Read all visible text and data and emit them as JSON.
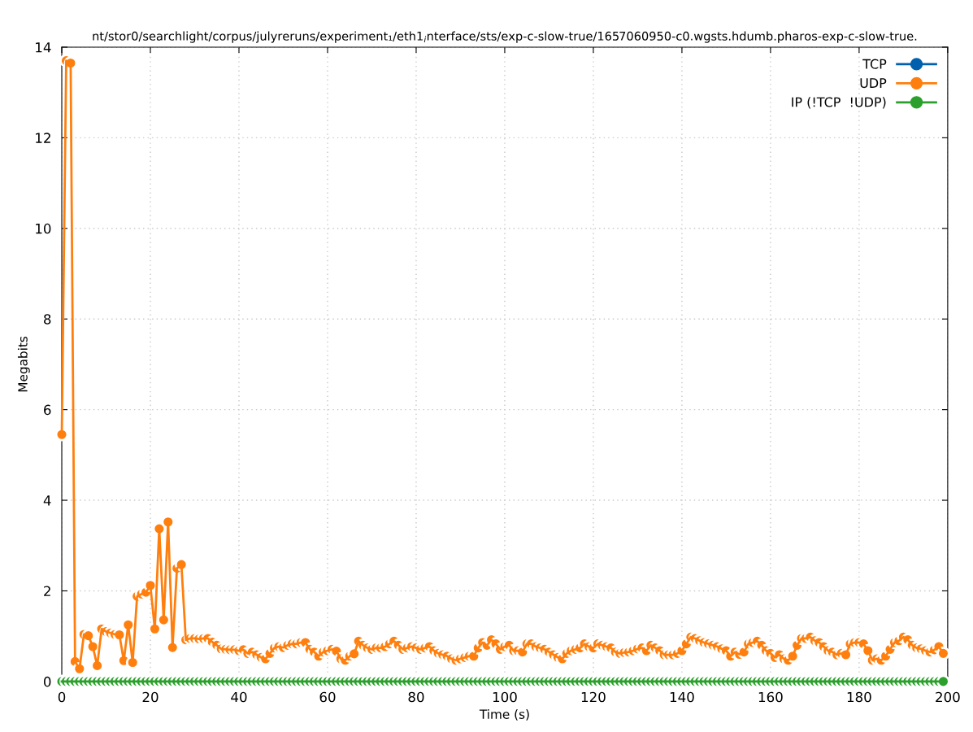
{
  "chart_data": {
    "type": "line",
    "title": "nt/stor0/searchlight/corpus/julyreruns/experiment₁/eth1$_{i}$nterface/sts/exp-c-slow-true/1657060950-c0.wgsts.hdumb.pharos-exp-c-slow-true.",
    "xlabel": "Time (s)",
    "ylabel": "Megabits",
    "x": [
      0,
      1,
      2,
      3,
      4,
      5,
      6,
      7,
      8,
      9,
      10,
      11,
      12,
      13,
      14,
      15,
      16,
      17,
      18,
      19,
      20,
      21,
      22,
      23,
      24,
      25,
      26,
      27,
      28,
      29,
      30,
      31,
      32,
      33,
      34,
      35,
      36,
      37,
      38,
      39,
      40,
      41,
      42,
      43,
      44,
      45,
      46,
      47,
      48,
      49,
      50,
      51,
      52,
      53,
      54,
      55,
      56,
      57,
      58,
      59,
      60,
      61,
      62,
      63,
      64,
      65,
      66,
      67,
      68,
      69,
      70,
      71,
      72,
      73,
      74,
      75,
      76,
      77,
      78,
      79,
      80,
      81,
      82,
      83,
      84,
      85,
      86,
      87,
      88,
      89,
      90,
      91,
      92,
      93,
      94,
      95,
      96,
      97,
      98,
      99,
      100,
      101,
      102,
      103,
      104,
      105,
      106,
      107,
      108,
      109,
      110,
      111,
      112,
      113,
      114,
      115,
      116,
      117,
      118,
      119,
      120,
      121,
      122,
      123,
      124,
      125,
      126,
      127,
      128,
      129,
      130,
      131,
      132,
      133,
      134,
      135,
      136,
      137,
      138,
      139,
      140,
      141,
      142,
      143,
      144,
      145,
      146,
      147,
      148,
      149,
      150,
      151,
      152,
      153,
      154,
      155,
      156,
      157,
      158,
      159,
      160,
      161,
      162,
      163,
      164,
      165,
      166,
      167,
      168,
      169,
      170,
      171,
      172,
      173,
      174,
      175,
      176,
      177,
      178,
      179,
      180,
      181,
      182,
      183,
      184,
      185,
      186,
      187,
      188,
      189,
      190,
      191,
      192,
      193,
      194,
      195,
      196,
      197,
      198,
      199
    ],
    "series": [
      {
        "name": "TCP",
        "color": "#0060ad",
        "values": [
          null,
          null,
          null,
          null,
          null,
          null,
          null,
          null,
          null,
          null,
          null,
          null,
          null,
          null,
          null,
          null,
          null,
          null,
          null,
          null,
          null,
          null,
          null,
          null,
          null,
          null,
          null,
          null,
          null,
          null,
          null,
          null,
          null,
          null,
          null,
          null,
          null,
          null,
          null,
          null,
          null,
          null,
          null,
          null,
          null,
          null,
          null,
          null,
          null,
          null,
          null,
          null,
          null,
          null,
          null,
          null,
          null,
          null,
          null,
          null,
          null,
          null,
          null,
          null,
          null,
          null,
          null,
          null,
          null,
          null,
          null,
          null,
          null,
          null,
          null,
          null,
          null,
          null,
          null,
          null,
          null,
          null,
          null,
          null,
          null,
          null,
          null,
          null,
          null,
          null,
          null,
          null,
          null,
          null,
          null,
          null,
          null,
          null,
          null,
          null,
          null,
          null,
          null,
          null,
          null,
          null,
          null,
          null,
          null,
          null,
          null,
          null,
          null,
          null,
          null,
          null,
          null,
          null,
          null,
          null,
          null,
          null,
          null,
          null,
          null,
          null,
          null,
          null,
          null,
          null,
          null,
          null,
          null,
          null,
          null,
          null,
          null,
          null,
          null,
          null,
          null,
          null,
          null,
          null,
          null,
          null,
          null,
          null,
          null,
          null,
          null,
          null,
          null,
          null,
          null,
          null,
          null,
          null,
          null,
          null,
          null,
          null,
          null,
          null,
          null,
          null,
          null,
          null,
          null,
          null,
          null,
          null,
          null,
          null,
          null,
          null,
          null,
          null,
          null,
          null,
          null,
          null,
          null,
          null,
          null,
          null,
          null,
          null,
          null,
          null,
          null,
          null,
          null,
          null,
          null,
          null,
          null,
          null,
          null,
          null
        ]
      },
      {
        "name": "UDP",
        "color": "#ff7f0e",
        "values": [
          5.45,
          13.7,
          13.65,
          0.44,
          0.28,
          1.04,
          1.01,
          0.77,
          0.35,
          1.16,
          1.1,
          1.07,
          1.04,
          1.03,
          0.46,
          1.25,
          0.42,
          1.88,
          1.93,
          1.97,
          2.12,
          1.16,
          3.37,
          1.36,
          3.52,
          0.75,
          2.5,
          2.58,
          0.92,
          0.95,
          0.95,
          0.94,
          0.95,
          0.95,
          0.87,
          0.8,
          0.72,
          0.71,
          0.7,
          0.7,
          0.68,
          0.7,
          0.62,
          0.65,
          0.59,
          0.53,
          0.5,
          0.62,
          0.74,
          0.77,
          0.75,
          0.8,
          0.83,
          0.83,
          0.86,
          0.86,
          0.71,
          0.65,
          0.56,
          0.65,
          0.68,
          0.71,
          0.67,
          0.5,
          0.47,
          0.56,
          0.61,
          0.89,
          0.8,
          0.74,
          0.71,
          0.74,
          0.74,
          0.77,
          0.83,
          0.89,
          0.8,
          0.71,
          0.74,
          0.77,
          0.74,
          0.71,
          0.74,
          0.77,
          0.68,
          0.62,
          0.59,
          0.56,
          0.5,
          0.47,
          0.5,
          0.53,
          0.56,
          0.56,
          0.74,
          0.86,
          0.8,
          0.92,
          0.83,
          0.71,
          0.77,
          0.8,
          0.68,
          0.68,
          0.65,
          0.83,
          0.83,
          0.77,
          0.74,
          0.71,
          0.65,
          0.59,
          0.53,
          0.5,
          0.62,
          0.68,
          0.71,
          0.74,
          0.83,
          0.77,
          0.74,
          0.83,
          0.8,
          0.77,
          0.74,
          0.65,
          0.62,
          0.64,
          0.65,
          0.68,
          0.72,
          0.74,
          0.68,
          0.8,
          0.74,
          0.68,
          0.59,
          0.59,
          0.59,
          0.62,
          0.68,
          0.83,
          0.98,
          0.95,
          0.9,
          0.86,
          0.83,
          0.8,
          0.77,
          0.72,
          0.68,
          0.56,
          0.65,
          0.6,
          0.65,
          0.83,
          0.86,
          0.89,
          0.8,
          0.68,
          0.62,
          0.53,
          0.59,
          0.5,
          0.47,
          0.56,
          0.8,
          0.95,
          0.95,
          0.98,
          0.9,
          0.86,
          0.77,
          0.68,
          0.65,
          0.59,
          0.62,
          0.59,
          0.83,
          0.86,
          0.86,
          0.83,
          0.68,
          0.47,
          0.5,
          0.47,
          0.56,
          0.71,
          0.86,
          0.9,
          0.98,
          0.92,
          0.8,
          0.74,
          0.72,
          0.68,
          0.65,
          0.7,
          0.77,
          0.62
        ]
      },
      {
        "name": "IP (!TCP  !UDP)",
        "color": "#2ca02c",
        "values": [
          0,
          0,
          0,
          0,
          0,
          0,
          0,
          0,
          0,
          0,
          0,
          0,
          0,
          0,
          0,
          0,
          0,
          0,
          0,
          0,
          0,
          0,
          0,
          0,
          0,
          0,
          0,
          0,
          0,
          0,
          0,
          0,
          0,
          0,
          0,
          0,
          0,
          0,
          0,
          0,
          0,
          0,
          0,
          0,
          0,
          0,
          0,
          0,
          0,
          0,
          0,
          0,
          0,
          0,
          0,
          0,
          0,
          0,
          0,
          0,
          0,
          0,
          0,
          0,
          0,
          0,
          0,
          0,
          0,
          0,
          0,
          0,
          0,
          0,
          0,
          0,
          0,
          0,
          0,
          0,
          0,
          0,
          0,
          0,
          0,
          0,
          0,
          0,
          0,
          0,
          0,
          0,
          0,
          0,
          0,
          0,
          0,
          0,
          0,
          0,
          0,
          0,
          0,
          0,
          0,
          0,
          0,
          0,
          0,
          0,
          0,
          0,
          0,
          0,
          0,
          0,
          0,
          0,
          0,
          0,
          0,
          0,
          0,
          0,
          0,
          0,
          0,
          0,
          0,
          0,
          0,
          0,
          0,
          0,
          0,
          0,
          0,
          0,
          0,
          0,
          0,
          0,
          0,
          0,
          0,
          0,
          0,
          0,
          0,
          0,
          0,
          0,
          0,
          0,
          0,
          0,
          0,
          0,
          0,
          0,
          0,
          0,
          0,
          0,
          0,
          0,
          0,
          0,
          0,
          0,
          0,
          0,
          0,
          0,
          0,
          0,
          0,
          0,
          0,
          0,
          0,
          0,
          0,
          0,
          0,
          0,
          0,
          0,
          0,
          0,
          0,
          0,
          0,
          0,
          0,
          0,
          0,
          0,
          0,
          0
        ]
      }
    ],
    "xlim": [
      0,
      200
    ],
    "xticks": [
      0,
      20,
      40,
      60,
      80,
      100,
      120,
      140,
      160,
      180,
      200
    ],
    "ylim": [
      0,
      14
    ],
    "yticks": [
      0,
      2,
      4,
      6,
      8,
      10,
      12,
      14
    ],
    "grid": true,
    "legend": "top right",
    "marker": "circle",
    "line_style": "solid"
  }
}
